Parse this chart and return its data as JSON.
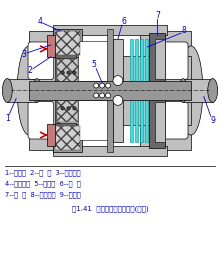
{
  "title": "图1.41  电磁多片摩擦离合器(常开)",
  "legend_lines": [
    "1--主动轴  2--衔  铁  3--复位弹簧",
    "4--励磁线圈  5--集流环  6--压  块",
    "7--磁  轭  8--摩擦片组  9--从动轴"
  ],
  "bg_color": "#ffffff",
  "label_color": "#0000cc",
  "gc_light": "#c0c0c0",
  "gc_mid": "#989898",
  "gc_dark": "#686868",
  "gc_outer": "#b0b0b0",
  "coil_bg": "#c8c8c8",
  "coil_hatch_color": "#808080",
  "friction_color": "#44dddd",
  "iron_color": "#c87878",
  "black": "#000000",
  "white": "#ffffff",
  "red": "#cc0000",
  "cyan_dark": "#009999"
}
